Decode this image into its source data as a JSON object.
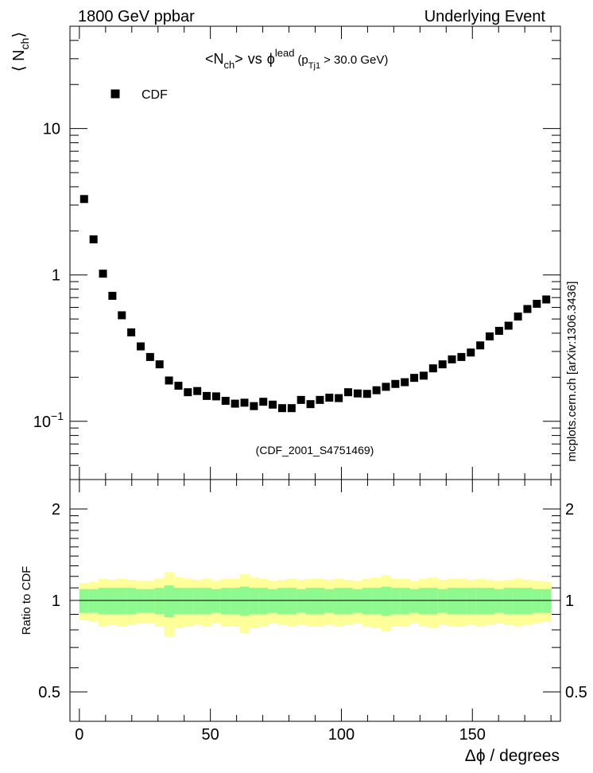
{
  "header": {
    "left": "1800 GeV ppbar",
    "right": "Underlying Event"
  },
  "side_label": "mcplots.cern.ch [arXiv:1306.3436]",
  "watermark": "(CDF_2001_S4751469)",
  "colors": {
    "marker": "#000000",
    "band_inner": "#8ef98e",
    "band_outer": "#ffff99",
    "watermark": "#999999",
    "side_label": "#777777"
  },
  "chart_data": [
    {
      "type": "scatter",
      "panel": "main",
      "title_parts": {
        "lt": "<",
        "n": "N",
        "ch": "ch",
        "gt": ">",
        "vs": "vs",
        "phi": "ϕ",
        "lead": "lead",
        "paren_open": "(p",
        "tj1": "Tj1",
        "cut": "> 30.0 GeV)"
      },
      "ylabel_parts": {
        "open": "⟨ N",
        "sub": "ch",
        "close": "⟩"
      },
      "yscale": "log",
      "ylim": [
        0.04,
        50
      ],
      "xlim": [
        -3.6,
        183.6
      ],
      "y_ticks": [
        {
          "value": 10,
          "label": "10",
          "base": "",
          "exp": ""
        },
        {
          "value": 1,
          "label": "1",
          "base": "",
          "exp": ""
        },
        {
          "value": 0.1,
          "label": "",
          "base": "10",
          "exp": "−1"
        }
      ],
      "legend": {
        "label": "CDF",
        "position": "top-left"
      },
      "series": [
        {
          "name": "CDF",
          "x": [
            1.8,
            5.4,
            9.0,
            12.6,
            16.2,
            19.8,
            23.4,
            27.0,
            30.6,
            34.2,
            37.8,
            41.4,
            45.0,
            48.6,
            52.2,
            55.8,
            59.4,
            63.0,
            66.6,
            70.2,
            73.8,
            77.4,
            81.0,
            84.6,
            88.2,
            91.8,
            95.4,
            99.0,
            102.6,
            106.2,
            109.8,
            113.4,
            117.0,
            120.6,
            124.2,
            127.8,
            131.4,
            135.0,
            138.6,
            142.2,
            145.8,
            149.4,
            153.0,
            156.6,
            160.2,
            163.8,
            167.4,
            171.0,
            174.6,
            178.2
          ],
          "values": [
            3.3,
            1.75,
            1.02,
            0.72,
            0.53,
            0.405,
            0.325,
            0.275,
            0.245,
            0.19,
            0.175,
            0.158,
            0.161,
            0.149,
            0.148,
            0.138,
            0.132,
            0.134,
            0.127,
            0.136,
            0.13,
            0.123,
            0.123,
            0.14,
            0.131,
            0.14,
            0.145,
            0.144,
            0.158,
            0.155,
            0.154,
            0.163,
            0.172,
            0.18,
            0.185,
            0.198,
            0.205,
            0.23,
            0.245,
            0.265,
            0.275,
            0.295,
            0.33,
            0.38,
            0.415,
            0.45,
            0.52,
            0.585,
            0.635,
            0.68
          ]
        }
      ]
    },
    {
      "type": "area",
      "panel": "ratio",
      "ylabel": "Ratio to CDF",
      "xlabel_parts": {
        "delta": "Δϕ",
        "rest": " / degrees"
      },
      "yscale": "log",
      "ylim": [
        0.4,
        2.5
      ],
      "xlim": [
        -3.6,
        183.6
      ],
      "y_ticks": [
        {
          "value": 2,
          "label": "2"
        },
        {
          "value": 1,
          "label": "1"
        },
        {
          "value": 0.5,
          "label": "0.5"
        }
      ],
      "x_ticks": [
        {
          "value": 0,
          "label": "0"
        },
        {
          "value": 50,
          "label": "50"
        },
        {
          "value": 100,
          "label": "100"
        },
        {
          "value": 150,
          "label": "150"
        }
      ],
      "reference_line": 1,
      "bin_width": 3.6,
      "x": [
        1.8,
        5.4,
        9.0,
        12.6,
        16.2,
        19.8,
        23.4,
        27.0,
        30.6,
        34.2,
        37.8,
        41.4,
        45.0,
        48.6,
        52.2,
        55.8,
        59.4,
        63.0,
        66.6,
        70.2,
        73.8,
        77.4,
        81.0,
        84.6,
        88.2,
        91.8,
        95.4,
        99.0,
        102.6,
        106.2,
        109.8,
        113.4,
        117.0,
        120.6,
        124.2,
        127.8,
        131.4,
        135.0,
        138.6,
        142.2,
        145.8,
        149.4,
        153.0,
        156.6,
        160.2,
        163.8,
        167.4,
        171.0,
        174.6,
        178.2
      ],
      "inner_err": [
        0.09,
        0.09,
        0.1,
        0.1,
        0.1,
        0.1,
        0.09,
        0.09,
        0.1,
        0.12,
        0.1,
        0.1,
        0.1,
        0.1,
        0.09,
        0.1,
        0.1,
        0.11,
        0.1,
        0.1,
        0.09,
        0.1,
        0.1,
        0.09,
        0.1,
        0.1,
        0.09,
        0.1,
        0.1,
        0.09,
        0.1,
        0.1,
        0.11,
        0.1,
        0.1,
        0.09,
        0.1,
        0.1,
        0.09,
        0.1,
        0.1,
        0.1,
        0.1,
        0.1,
        0.09,
        0.1,
        0.1,
        0.1,
        0.09,
        0.09
      ],
      "outer_err": [
        0.14,
        0.15,
        0.18,
        0.17,
        0.18,
        0.17,
        0.16,
        0.16,
        0.18,
        0.24,
        0.19,
        0.18,
        0.17,
        0.18,
        0.16,
        0.18,
        0.18,
        0.22,
        0.19,
        0.18,
        0.16,
        0.17,
        0.18,
        0.17,
        0.18,
        0.18,
        0.17,
        0.18,
        0.17,
        0.16,
        0.18,
        0.19,
        0.21,
        0.18,
        0.18,
        0.16,
        0.18,
        0.19,
        0.17,
        0.18,
        0.18,
        0.17,
        0.18,
        0.17,
        0.16,
        0.17,
        0.18,
        0.17,
        0.16,
        0.15
      ]
    }
  ]
}
